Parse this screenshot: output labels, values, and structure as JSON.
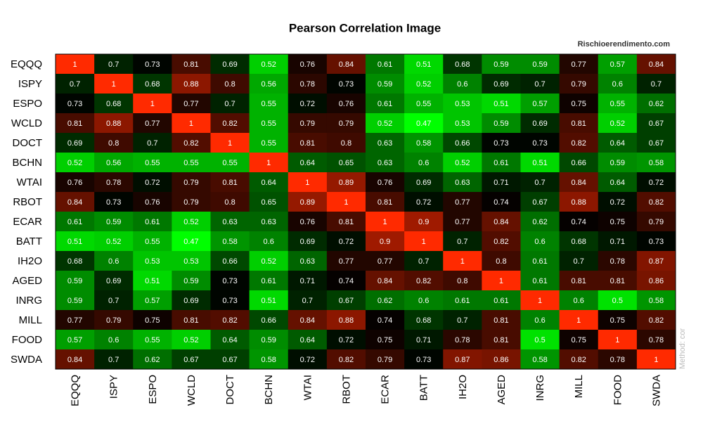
{
  "chart_data": {
    "type": "heatmap",
    "title": "Pearson Correlation  Image",
    "source": "Rischioerendimento.com",
    "annotation": "Method: cor",
    "colors": [
      "#00ff00",
      "#000000",
      "#ff2a00"
    ],
    "categories": [
      "EQQQ",
      "ISPY",
      "ESPO",
      "WCLD",
      "DOCT",
      "BCHN",
      "WTAI",
      "RBOT",
      "ECAR",
      "BATT",
      "IH2O",
      "AGED",
      "INRG",
      "MILL",
      "FOOD",
      "SWDA"
    ],
    "rows": [
      "EQQQ",
      "ISPY",
      "ESPO",
      "WCLD",
      "DOCT",
      "BCHN",
      "WTAI",
      "RBOT",
      "ECAR",
      "BATT",
      "IH2O",
      "AGED",
      "INRG",
      "MILL",
      "FOOD",
      "SWDA"
    ],
    "values": [
      [
        1,
        0.7,
        0.73,
        0.81,
        0.69,
        0.52,
        0.76,
        0.84,
        0.61,
        0.51,
        0.68,
        0.59,
        0.59,
        0.77,
        0.57,
        0.84
      ],
      [
        0.7,
        1,
        0.68,
        0.88,
        0.8,
        0.56,
        0.78,
        0.73,
        0.59,
        0.52,
        0.6,
        0.69,
        0.7,
        0.79,
        0.6,
        0.7
      ],
      [
        0.73,
        0.68,
        1,
        0.77,
        0.7,
        0.55,
        0.72,
        0.76,
        0.61,
        0.55,
        0.53,
        0.51,
        0.57,
        0.75,
        0.55,
        0.62
      ],
      [
        0.81,
        0.88,
        0.77,
        1,
        0.82,
        0.55,
        0.79,
        0.79,
        0.52,
        0.47,
        0.53,
        0.59,
        0.69,
        0.81,
        0.52,
        0.67
      ],
      [
        0.69,
        0.8,
        0.7,
        0.82,
        1,
        0.55,
        0.81,
        0.8,
        0.63,
        0.58,
        0.66,
        0.73,
        0.73,
        0.82,
        0.64,
        0.67
      ],
      [
        0.52,
        0.56,
        0.55,
        0.55,
        0.55,
        1,
        0.64,
        0.65,
        0.63,
        0.6,
        0.52,
        0.61,
        0.51,
        0.66,
        0.59,
        0.58
      ],
      [
        0.76,
        0.78,
        0.72,
        0.79,
        0.81,
        0.64,
        1,
        0.89,
        0.76,
        0.69,
        0.63,
        0.71,
        0.7,
        0.84,
        0.64,
        0.72
      ],
      [
        0.84,
        0.73,
        0.76,
        0.79,
        0.8,
        0.65,
        0.89,
        1,
        0.81,
        0.72,
        0.77,
        0.74,
        0.67,
        0.88,
        0.72,
        0.82
      ],
      [
        0.61,
        0.59,
        0.61,
        0.52,
        0.63,
        0.63,
        0.76,
        0.81,
        1,
        0.9,
        0.77,
        0.84,
        0.62,
        0.74,
        0.75,
        0.79
      ],
      [
        0.51,
        0.52,
        0.55,
        0.47,
        0.58,
        0.6,
        0.69,
        0.72,
        0.9,
        1,
        0.7,
        0.82,
        0.6,
        0.68,
        0.71,
        0.73
      ],
      [
        0.68,
        0.6,
        0.53,
        0.53,
        0.66,
        0.52,
        0.63,
        0.77,
        0.77,
        0.7,
        1,
        0.8,
        0.61,
        0.7,
        0.78,
        0.87
      ],
      [
        0.59,
        0.69,
        0.51,
        0.59,
        0.73,
        0.61,
        0.71,
        0.74,
        0.84,
        0.82,
        0.8,
        1,
        0.61,
        0.81,
        0.81,
        0.86
      ],
      [
        0.59,
        0.7,
        0.57,
        0.69,
        0.73,
        0.51,
        0.7,
        0.67,
        0.62,
        0.6,
        0.61,
        0.61,
        1,
        0.6,
        0.5,
        0.58
      ],
      [
        0.77,
        0.79,
        0.75,
        0.81,
        0.82,
        0.66,
        0.84,
        0.88,
        0.74,
        0.68,
        0.7,
        0.81,
        0.6,
        1,
        0.75,
        0.82
      ],
      [
        0.57,
        0.6,
        0.55,
        0.52,
        0.64,
        0.59,
        0.64,
        0.72,
        0.75,
        0.71,
        0.78,
        0.81,
        0.5,
        0.75,
        1,
        0.78
      ],
      [
        0.84,
        0.7,
        0.62,
        0.67,
        0.67,
        0.58,
        0.72,
        0.82,
        0.79,
        0.73,
        0.87,
        0.86,
        0.58,
        0.82,
        0.78,
        1
      ]
    ]
  }
}
